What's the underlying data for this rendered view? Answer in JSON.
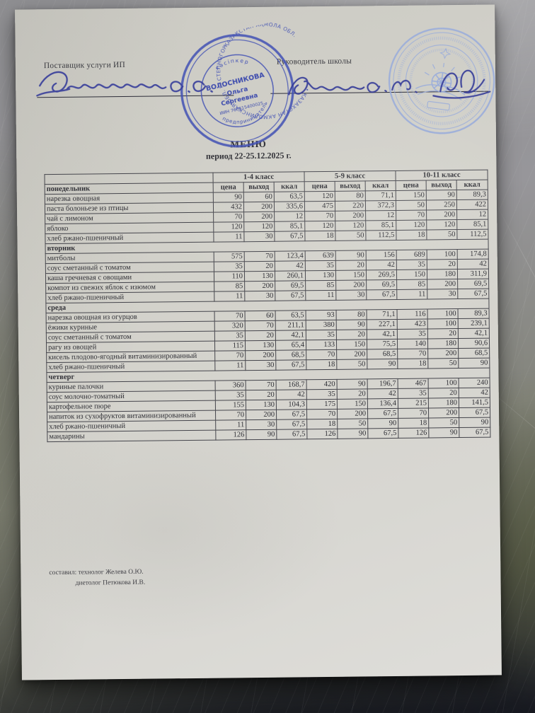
{
  "header": {
    "supplier_label": "Поставщик услуги ИП",
    "director_label": "Руководитель школы"
  },
  "signatures": {
    "supplier": "Волосникова С.С.",
    "director": "Журина С. М."
  },
  "stamps": {
    "supplier_stamp": {
      "ring_text": "ҚАЗАҚСТАН АҚМОЛА ОБЛ. СТЕПНОГОРСК Қ. • КАЗАХСТАН АКМОЛИНСКАЯ ОБЛ. Г. СТЕПНОГОРСК •",
      "inner_top": "кәсіпкер",
      "inner_bottom": "предприниматель",
      "name_line1": "ВОЛОСНИКОВА",
      "name_line2": "Ольга",
      "name_line3": "Сергеевна",
      "id_line": "ИИН 760615400025",
      "color": "#4150b4"
    },
    "school_stamp": {
      "color": "#97abdc"
    }
  },
  "title": {
    "heading": "МЕНЮ",
    "period": "период  22-25.12.2025 г."
  },
  "table": {
    "class_groups": [
      "1-4 класс",
      "5-9 класс",
      "10-11 класс"
    ],
    "sub_headers": [
      "цена",
      "выход",
      "ккал"
    ],
    "sections": [
      {
        "day": "понедельник",
        "rows": [
          {
            "name": "нарезка овощная",
            "values": [
              "90",
              "60",
              "63,5",
              "120",
              "80",
              "71,1",
              "150",
              "90",
              "89,3"
            ]
          },
          {
            "name": "паста болоньезе из птицы",
            "values": [
              "432",
              "200",
              "335,6",
              "475",
              "220",
              "372,3",
              "50",
              "250",
              "422"
            ]
          },
          {
            "name": "чай с лимоном",
            "values": [
              "70",
              "200",
              "12",
              "70",
              "200",
              "12",
              "70",
              "200",
              "12"
            ]
          },
          {
            "name": "яблоко",
            "values": [
              "120",
              "120",
              "85,1",
              "120",
              "120",
              "85,1",
              "120",
              "120",
              "85,1"
            ]
          },
          {
            "name": "хлеб ржано-пшеничный",
            "values": [
              "11",
              "30",
              "67,5",
              "18",
              "50",
              "112,5",
              "18",
              "50",
              "112,5"
            ]
          }
        ]
      },
      {
        "day": "вторник",
        "rows": [
          {
            "name": "митболы",
            "values": [
              "575",
              "70",
              "123,4",
              "639",
              "90",
              "156",
              "689",
              "100",
              "174,8"
            ]
          },
          {
            "name": "соус сметанный с томатом",
            "values": [
              "35",
              "20",
              "42",
              "35",
              "20",
              "42",
              "35",
              "20",
              "42"
            ]
          },
          {
            "name": "каша гречневая с овощами",
            "values": [
              "110",
              "130",
              "260,1",
              "130",
              "150",
              "269,5",
              "150",
              "180",
              "311,9"
            ]
          },
          {
            "name": "компот из свежих яблок с изюмом",
            "values": [
              "85",
              "200",
              "69,5",
              "85",
              "200",
              "69,5",
              "85",
              "200",
              "69,5"
            ]
          },
          {
            "name": "хлеб ржано-пшеничный",
            "values": [
              "11",
              "30",
              "67,5",
              "11",
              "30",
              "67,5",
              "11",
              "30",
              "67,5"
            ]
          }
        ]
      },
      {
        "day": "среда",
        "rows": [
          {
            "name": "нарезка овощная из огурцов",
            "values": [
              "70",
              "60",
              "63,5",
              "93",
              "80",
              "71,1",
              "116",
              "100",
              "89,3"
            ]
          },
          {
            "name": "ёжики куриные",
            "values": [
              "320",
              "70",
              "211,1",
              "380",
              "90",
              "227,1",
              "423",
              "100",
              "239,1"
            ]
          },
          {
            "name": "соус сметанный с томатом",
            "values": [
              "35",
              "20",
              "42,1",
              "35",
              "20",
              "42,1",
              "35",
              "20",
              "42,1"
            ]
          },
          {
            "name": "рагу из овощей",
            "values": [
              "115",
              "130",
              "65,4",
              "133",
              "150",
              "75,5",
              "140",
              "180",
              "90,6"
            ]
          },
          {
            "name": "кисель плодово-ягодный витаминизированный",
            "values": [
              "70",
              "200",
              "68,5",
              "70",
              "200",
              "68,5",
              "70",
              "200",
              "68,5"
            ]
          },
          {
            "name": "хлеб ржано-пшеничный",
            "values": [
              "11",
              "30",
              "67,5",
              "18",
              "50",
              "90",
              "18",
              "50",
              "90"
            ]
          }
        ]
      },
      {
        "day": "четверг",
        "rows": [
          {
            "name": "куриные палочки",
            "values": [
              "360",
              "70",
              "168,7",
              "420",
              "90",
              "196,7",
              "467",
              "100",
              "240"
            ]
          },
          {
            "name": "соус молочно-томатный",
            "values": [
              "35",
              "20",
              "42",
              "35",
              "20",
              "42",
              "35",
              "20",
              "42"
            ]
          },
          {
            "name": "картофельное пюре",
            "values": [
              "155",
              "130",
              "104,3",
              "175",
              "150",
              "136,4",
              "215",
              "180",
              "141,5"
            ]
          },
          {
            "name": "напиток из сухофруктов витаминизированный",
            "values": [
              "70",
              "200",
              "67,5",
              "70",
              "200",
              "67,5",
              "70",
              "200",
              "67,5"
            ]
          },
          {
            "name": "хлеб ржано-пшеничный",
            "values": [
              "11",
              "30",
              "67,5",
              "18",
              "50",
              "90",
              "18",
              "50",
              "90"
            ]
          },
          {
            "name": "мандарины",
            "values": [
              "126",
              "90",
              "67,5",
              "126",
              "90",
              "67,5",
              "126",
              "90",
              "67,5"
            ]
          }
        ]
      }
    ]
  },
  "footer": {
    "line1": "составил: технолог Желева О.Ю.",
    "line2": "диетолог Петюкова И.В."
  }
}
